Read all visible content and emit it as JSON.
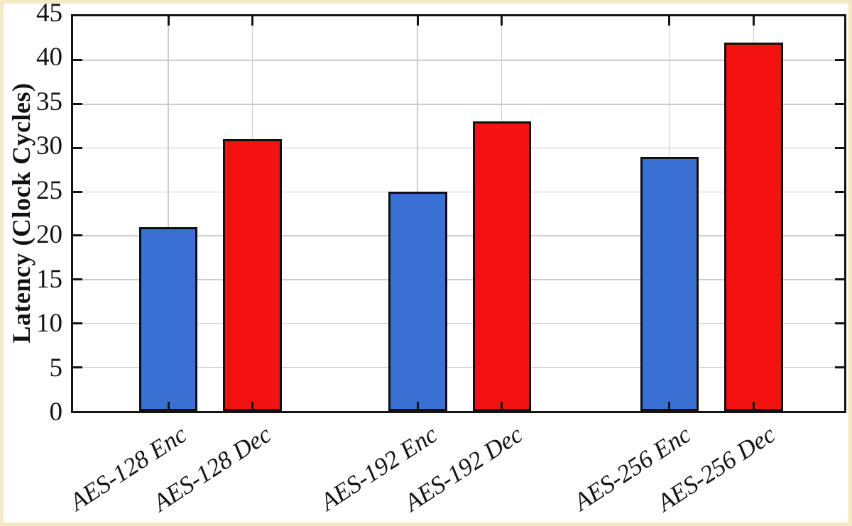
{
  "chart_data": {
    "type": "bar",
    "title": "",
    "xlabel": "",
    "ylabel": "Latency (Clock Cycles)",
    "categories": [
      "AES-128 Enc",
      "AES-128 Dec",
      "AES-192 Enc",
      "AES-192 Dec",
      "AES-256 Enc",
      "AES-256 Dec"
    ],
    "values": [
      21,
      31,
      25,
      33,
      29,
      42
    ],
    "groups": [
      "AES-128",
      "AES-192",
      "AES-256"
    ],
    "series": [
      {
        "name": "Enc",
        "color": "#3a70d2",
        "values": [
          21,
          25,
          29
        ]
      },
      {
        "name": "Dec",
        "color": "#f21212",
        "values": [
          31,
          33,
          42
        ]
      }
    ],
    "bar_colors": [
      "#3a70d2",
      "#f21212",
      "#3a70d2",
      "#f21212",
      "#3a70d2",
      "#f21212"
    ],
    "ylim": [
      0,
      45
    ],
    "yticks": [
      0,
      5,
      10,
      15,
      20,
      25,
      30,
      35,
      40,
      45
    ],
    "grid": true,
    "legend": "none",
    "axis_color": "#141414",
    "grid_color": "#cccccc",
    "page_border_color": "#f3e9c2",
    "plot_background": "#ffffff"
  }
}
